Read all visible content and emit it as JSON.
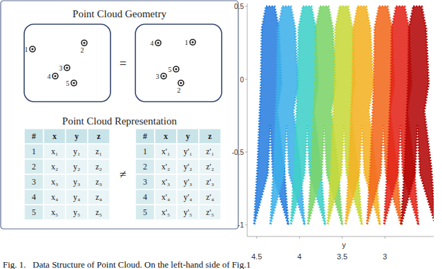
{
  "left_panel": {
    "geometry_title": "Point Cloud Geometry",
    "equals": "=",
    "geometry_boxes": [
      {
        "points": [
          "1",
          "2",
          "3",
          "4",
          "5"
        ]
      },
      {
        "points": [
          "4",
          "1",
          "5",
          "3",
          "2"
        ]
      }
    ],
    "representation_title": "Point Cloud Representation",
    "not_equal": "≠",
    "tables": [
      {
        "header": [
          "#",
          "x",
          "y",
          "z"
        ],
        "rows": [
          [
            "1",
            "x₁",
            "y₁",
            "z₁"
          ],
          [
            "2",
            "x₂",
            "y₂",
            "z₂"
          ],
          [
            "3",
            "x₃",
            "y₃",
            "z₃"
          ],
          [
            "4",
            "x₄",
            "y₄",
            "z₄"
          ],
          [
            "5",
            "x₅",
            "y₅",
            "z₅"
          ]
        ]
      },
      {
        "header": [
          "#",
          "x",
          "y",
          "z"
        ],
        "rows": [
          [
            "1",
            "x'₁",
            "y'₁",
            "z'₁"
          ],
          [
            "2",
            "x'₂",
            "y'₂",
            "z'₂"
          ],
          [
            "3",
            "x'₃",
            "y'₃",
            "z'₃"
          ],
          [
            "4",
            "x'₄",
            "y'₄",
            "z'₄"
          ],
          [
            "5",
            "x'₅",
            "y'₅",
            "z'₅"
          ]
        ]
      }
    ]
  },
  "caption": "Fig. 1.   Data Structure of Point Cloud. On the left-hand side of Fig.1",
  "chart_data": {
    "type": "area",
    "x_label": "y",
    "xlim": [
      4.61,
      2.43
    ],
    "xticks": [
      4.5,
      4,
      3.5,
      3
    ],
    "ylim": [
      -1.08,
      0.52
    ],
    "yticks": [
      0.5,
      0,
      -0.5,
      -1
    ],
    "series": [
      {
        "color": "#2a7fe0",
        "x": [
          4.39,
          4.29,
          4.24,
          4.21,
          4.26,
          4.18,
          4.13,
          4.31,
          4.34,
          4.37,
          4.53,
          4.49,
          4.45,
          4.44
        ],
        "values": [
          0.5,
          0.5,
          0.35,
          -0.03,
          -0.22,
          -0.6,
          -1.0,
          -0.65,
          -0.32,
          -0.65,
          -1.0,
          -0.6,
          -0.03,
          0.35
        ]
      },
      {
        "color": "#3fb0ea",
        "x": [
          4.2,
          4.1,
          4.05,
          4.02,
          4.07,
          3.99,
          3.94,
          4.12,
          4.15,
          4.18,
          4.34,
          4.3,
          4.26,
          4.25
        ],
        "values": [
          0.5,
          0.5,
          0.35,
          -0.03,
          -0.22,
          -0.6,
          -1.0,
          -0.65,
          -0.32,
          -0.65,
          -1.0,
          -0.6,
          -0.03,
          0.35
        ]
      },
      {
        "color": "#3fd0c8",
        "x": [
          3.96,
          3.86,
          3.81,
          3.78,
          3.83,
          3.75,
          3.7,
          3.88,
          3.91,
          3.94,
          4.1,
          4.06,
          4.02,
          4.01
        ],
        "values": [
          0.5,
          0.5,
          0.35,
          -0.03,
          -0.22,
          -0.6,
          -1.0,
          -0.65,
          -0.32,
          -0.65,
          -1.0,
          -0.6,
          -0.03,
          0.35
        ]
      },
      {
        "color": "#7cd46a",
        "x": [
          3.76,
          3.66,
          3.61,
          3.58,
          3.63,
          3.55,
          3.5,
          3.68,
          3.71,
          3.74,
          3.9,
          3.86,
          3.82,
          3.81
        ],
        "values": [
          0.5,
          0.5,
          0.35,
          -0.03,
          -0.22,
          -0.6,
          -1.0,
          -0.65,
          -0.32,
          -0.65,
          -1.0,
          -0.6,
          -0.03,
          0.35
        ]
      },
      {
        "color": "#c8d83a",
        "x": [
          3.53,
          3.43,
          3.38,
          3.35,
          3.4,
          3.32,
          3.27,
          3.45,
          3.48,
          3.51,
          3.67,
          3.63,
          3.59,
          3.58
        ],
        "values": [
          0.5,
          0.5,
          0.35,
          -0.03,
          -0.22,
          -0.6,
          -1.0,
          -0.65,
          -0.32,
          -0.65,
          -1.0,
          -0.6,
          -0.03,
          0.35
        ]
      },
      {
        "color": "#f4b224",
        "x": [
          3.32,
          3.22,
          3.17,
          3.14,
          3.19,
          3.11,
          3.06,
          3.24,
          3.27,
          3.3,
          3.46,
          3.42,
          3.38,
          3.37
        ],
        "values": [
          0.5,
          0.5,
          0.35,
          -0.03,
          -0.22,
          -0.6,
          -1.0,
          -0.65,
          -0.32,
          -0.65,
          -1.0,
          -0.6,
          -0.03,
          0.35
        ]
      },
      {
        "color": "#f26a1e",
        "x": [
          3.07,
          2.97,
          2.92,
          2.89,
          2.94,
          2.86,
          2.81,
          2.99,
          3.02,
          3.05,
          3.21,
          3.17,
          3.13,
          3.12
        ],
        "values": [
          0.5,
          0.5,
          0.35,
          -0.03,
          -0.22,
          -0.6,
          -1.0,
          -0.65,
          -0.32,
          -0.65,
          -1.0,
          -0.6,
          -0.03,
          0.35
        ]
      },
      {
        "color": "#e2261a",
        "x": [
          2.87,
          2.77,
          2.72,
          2.69,
          2.74,
          2.66,
          2.61,
          2.79,
          2.82,
          2.85,
          3.01,
          2.97,
          2.93,
          2.92
        ],
        "values": [
          0.5,
          0.5,
          0.35,
          -0.03,
          -0.22,
          -0.6,
          -1.0,
          -0.65,
          -0.32,
          -0.65,
          -1.0,
          -0.6,
          -0.03,
          0.35
        ]
      },
      {
        "color": "#b30808",
        "x": [
          2.67,
          2.57,
          2.52,
          2.49,
          2.54,
          2.46,
          2.41,
          2.59,
          2.62,
          2.65,
          2.81,
          2.77,
          2.73,
          2.72
        ],
        "values": [
          0.5,
          0.5,
          0.35,
          -0.03,
          -0.22,
          -0.6,
          -1.0,
          -0.65,
          -0.32,
          -0.65,
          -1.0,
          -0.6,
          -0.03,
          0.35
        ]
      }
    ]
  }
}
